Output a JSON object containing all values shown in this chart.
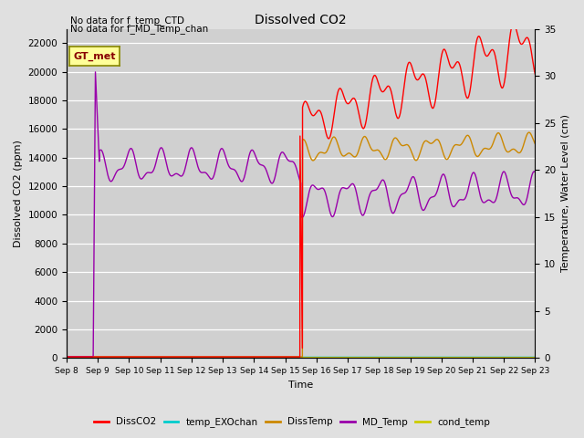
{
  "title": "Dissolved CO2",
  "xlabel": "Time",
  "ylabel_left": "Dissolved CO2 (ppm)",
  "ylabel_right": "Temperature, Water Level (cm)",
  "annotation1": "No data for f_temp_CTD",
  "annotation2": "No data for f_MD_Temp_chan",
  "gt_met_label": "GT_met",
  "ylim_left": [
    0,
    23000
  ],
  "ylim_right": [
    0,
    35
  ],
  "fig_bg": "#e0e0e0",
  "plot_bg": "#d0d0d0",
  "grid_color": "#ffffff",
  "legend_entries": [
    "DissCO2",
    "temp_EXOchan",
    "DissTemp",
    "MD_Temp",
    "cond_temp"
  ],
  "legend_colors": [
    "#ff0000",
    "#00cccc",
    "#cc8800",
    "#9900aa",
    "#cccc00"
  ],
  "x_tick_labels": [
    "Sep 8",
    "Sep 9",
    "Sep 10",
    "Sep 11",
    "Sep 12",
    "Sep 13",
    "Sep 14",
    "Sep 15",
    "Sep 16",
    "Sep 17",
    "Sep 18",
    "Sep 19",
    "Sep 20",
    "Sep 21",
    "Sep 22",
    "Sep 23"
  ],
  "x_tick_positions": [
    0,
    1,
    2,
    3,
    4,
    5,
    6,
    7,
    8,
    9,
    10,
    11,
    12,
    13,
    14,
    15
  ]
}
